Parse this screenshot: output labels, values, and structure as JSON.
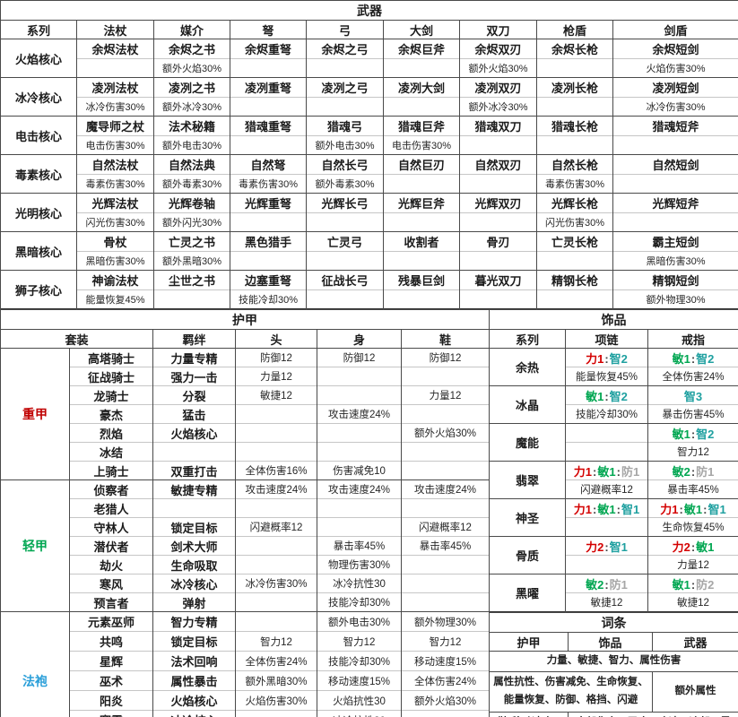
{
  "weapons": {
    "title": "武器",
    "columns": [
      "系列",
      "法杖",
      "媒介",
      "弩",
      "弓",
      "大剑",
      "双刀",
      "枪盾",
      "剑盾"
    ],
    "rows": [
      {
        "series": "火焰核心",
        "names": [
          "余烬法杖",
          "余烬之书",
          "余烬重弩",
          "余烬之弓",
          "余烬巨斧",
          "余烬双刃",
          "余烬长枪",
          "余烬短剑"
        ],
        "bonuses": [
          "",
          "额外火焰30%",
          "",
          "",
          "",
          "额外火焰30%",
          "",
          "火焰伤害30%"
        ]
      },
      {
        "series": "冰冷核心",
        "names": [
          "凌冽法杖",
          "凌冽之书",
          "凌冽重弩",
          "凌冽之弓",
          "凌冽大剑",
          "凌冽双刃",
          "凌冽长枪",
          "凌冽短剑"
        ],
        "bonuses": [
          "冰冷伤害30%",
          "额外冰冷30%",
          "",
          "",
          "",
          "额外冰冷30%",
          "",
          "冰冷伤害30%"
        ]
      },
      {
        "series": "电击核心",
        "names": [
          "魔导师之杖",
          "法术秘籍",
          "猎魂重弩",
          "猎魂弓",
          "猎魂巨斧",
          "猎魂双刀",
          "猎魂长枪",
          "猎魂短斧"
        ],
        "bonuses": [
          "电击伤害30%",
          "额外电击30%",
          "",
          "额外电击30%",
          "电击伤害30%",
          "",
          "",
          ""
        ]
      },
      {
        "series": "毒素核心",
        "names": [
          "自然法杖",
          "自然法典",
          "自然弩",
          "自然长弓",
          "自然巨刃",
          "自然双刃",
          "自然长枪",
          "自然短剑"
        ],
        "bonuses": [
          "毒素伤害30%",
          "额外毒素30%",
          "毒素伤害30%",
          "额外毒素30%",
          "",
          "",
          "毒素伤害30%",
          ""
        ]
      },
      {
        "series": "光明核心",
        "names": [
          "光辉法杖",
          "光辉卷轴",
          "光辉重弩",
          "光辉长弓",
          "光辉巨斧",
          "光辉双刃",
          "光辉长枪",
          "光辉短斧"
        ],
        "bonuses": [
          "闪光伤害30%",
          "额外闪光30%",
          "",
          "",
          "",
          "",
          "闪光伤害30%",
          ""
        ]
      },
      {
        "series": "黑暗核心",
        "names": [
          "骨杖",
          "亡灵之书",
          "黑色猎手",
          "亡灵弓",
          "收割者",
          "骨刃",
          "亡灵长枪",
          "霸主短剑"
        ],
        "bonuses": [
          "黑暗伤害30%",
          "额外黑暗30%",
          "",
          "",
          "",
          "",
          "",
          "黑暗伤害30%"
        ]
      },
      {
        "series": "狮子核心",
        "names": [
          "神谕法杖",
          "尘世之书",
          "边塞重弩",
          "征战长弓",
          "残暴巨剑",
          "暮光双刀",
          "精钢长枪",
          "精钢短剑"
        ],
        "bonuses": [
          "能量恢复45%",
          "",
          "技能冷却30%",
          "",
          "",
          "",
          "",
          "额外物理30%"
        ]
      }
    ]
  },
  "armor": {
    "title": "护甲",
    "columns": [
      "套装",
      "羁绊",
      "头",
      "身",
      "鞋"
    ],
    "groups": [
      {
        "label": "重甲",
        "color": "#c00000",
        "sets": [
          {
            "name": "高塔骑士",
            "bond": "力量专精",
            "head": "防御12",
            "body": "防御12",
            "shoes": "防御12"
          },
          {
            "name": "征战骑士",
            "bond": "强力一击",
            "head": "力量12",
            "body": "",
            "shoes": ""
          },
          {
            "name": "龙骑士",
            "bond": "分裂",
            "head": "敏捷12",
            "body": "",
            "shoes": "力量12"
          },
          {
            "name": "豪杰",
            "bond": "猛击",
            "head": "",
            "body": "攻击速度24%",
            "shoes": ""
          },
          {
            "name": "烈焰",
            "bond": "火焰核心",
            "head": "",
            "body": "",
            "shoes": "额外火焰30%"
          },
          {
            "name": "冰结",
            "bond": "",
            "head": "",
            "body": "",
            "shoes": ""
          },
          {
            "name": "上骑士",
            "bond": "双重打击",
            "head": "全体伤害16%",
            "body": "伤害减免10",
            "shoes": ""
          }
        ]
      },
      {
        "label": "轻甲",
        "color": "#00a651",
        "sets": [
          {
            "name": "侦察者",
            "bond": "敏捷专精",
            "head": "攻击速度24%",
            "body": "攻击速度24%",
            "shoes": "攻击速度24%"
          },
          {
            "name": "老猎人",
            "bond": "",
            "head": "",
            "body": "",
            "shoes": ""
          },
          {
            "name": "守林人",
            "bond": "锁定目标",
            "head": "闪避概率12",
            "body": "",
            "shoes": "闪避概率12"
          },
          {
            "name": "潜伏者",
            "bond": "剑术大师",
            "head": "",
            "body": "暴击率45%",
            "shoes": "暴击率45%"
          },
          {
            "name": "劫火",
            "bond": "生命吸取",
            "head": "",
            "body": "物理伤害30%",
            "shoes": ""
          },
          {
            "name": "寒风",
            "bond": "冰冷核心",
            "head": "冰冷伤害30%",
            "body": "冰冷抗性30",
            "shoes": ""
          },
          {
            "name": "预言者",
            "bond": "弹射",
            "head": "",
            "body": "技能冷却30%",
            "shoes": ""
          }
        ]
      },
      {
        "label": "法袍",
        "color": "#2b9fd9",
        "sets": [
          {
            "name": "元素巫师",
            "bond": "智力专精",
            "head": "",
            "body": "额外电击30%",
            "shoes": "额外物理30%"
          },
          {
            "name": "共鸣",
            "bond": "锁定目标",
            "head": "智力12",
            "body": "智力12",
            "shoes": "智力12"
          },
          {
            "name": "星辉",
            "bond": "法术回响",
            "head": "全体伤害24%",
            "body": "技能冷却30%",
            "shoes": "移动速度15%"
          },
          {
            "name": "巫术",
            "bond": "属性暴击",
            "head": "额外黑暗30%",
            "body": "移动速度15%",
            "shoes": "全体伤害24%"
          },
          {
            "name": "阳炎",
            "bond": "火焰核心",
            "head": "火焰伤害30%",
            "body": "火焰抗性30",
            "shoes": "额外火焰30%"
          },
          {
            "name": "寒霜",
            "bond": "冰冷核心",
            "head": "",
            "body": "冰冷抗性30",
            "shoes": ""
          },
          {
            "name": "主教",
            "bond": "弹射/专注/增幅",
            "head": "能量恢复45%",
            "body": "全体伤害24%",
            "shoes": "技能冷却30%"
          }
        ]
      }
    ]
  },
  "accessories": {
    "title": "饰品",
    "columns": [
      "系列",
      "项链",
      "戒指"
    ],
    "sep": ":",
    "stat_colors": {
      "str": "#d40000",
      "agi": "#00a651",
      "int": "#1fa0a0",
      "def": "#a6a6a6"
    },
    "rows": [
      {
        "series": "余热",
        "necklace": {
          "stats": [
            {
              "text": "力1",
              "c": "str"
            },
            {
              "text": "智2",
              "c": "int"
            }
          ],
          "bonus": "能量恢复45%"
        },
        "ring": {
          "stats": [
            {
              "text": "敏1",
              "c": "agi"
            },
            {
              "text": "智2",
              "c": "int"
            }
          ],
          "bonus": "全体伤害24%"
        }
      },
      {
        "series": "冰晶",
        "necklace": {
          "stats": [
            {
              "text": "敏1",
              "c": "agi"
            },
            {
              "text": "智2",
              "c": "int"
            }
          ],
          "bonus": "技能冷却30%"
        },
        "ring": {
          "stats": [
            {
              "text": "智3",
              "c": "int"
            }
          ],
          "bonus": "暴击伤害45%"
        }
      },
      {
        "series": "魔能",
        "necklace": {
          "stats": [],
          "bonus": ""
        },
        "ring": {
          "stats": [
            {
              "text": "敏1",
              "c": "agi"
            },
            {
              "text": "智2",
              "c": "int"
            }
          ],
          "bonus": "智力12"
        }
      },
      {
        "series": "翡翠",
        "necklace": {
          "stats": [
            {
              "text": "力1",
              "c": "str"
            },
            {
              "text": "敏1",
              "c": "agi"
            },
            {
              "text": "防1",
              "c": "def"
            }
          ],
          "bonus": "闪避概率12"
        },
        "ring": {
          "stats": [
            {
              "text": "敏2",
              "c": "agi"
            },
            {
              "text": "防1",
              "c": "def"
            }
          ],
          "bonus": "暴击率45%"
        }
      },
      {
        "series": "神圣",
        "necklace": {
          "stats": [
            {
              "text": "力1",
              "c": "str"
            },
            {
              "text": "敏1",
              "c": "agi"
            },
            {
              "text": "智1",
              "c": "int"
            }
          ],
          "bonus": ""
        },
        "ring": {
          "stats": [
            {
              "text": "力1",
              "c": "str"
            },
            {
              "text": "敏1",
              "c": "agi"
            },
            {
              "text": "智1",
              "c": "int"
            }
          ],
          "bonus": "生命恢复45%"
        }
      },
      {
        "series": "骨质",
        "necklace": {
          "stats": [
            {
              "text": "力2",
              "c": "str"
            },
            {
              "text": "智1",
              "c": "int"
            }
          ],
          "bonus": ""
        },
        "ring": {
          "stats": [
            {
              "text": "力2",
              "c": "str"
            },
            {
              "text": "敏1",
              "c": "agi"
            }
          ],
          "bonus": "力量12"
        }
      },
      {
        "series": "黑曜",
        "necklace": {
          "stats": [
            {
              "text": "敏2",
              "c": "agi"
            },
            {
              "text": "防1",
              "c": "def"
            }
          ],
          "bonus": "敏捷12"
        },
        "ring": {
          "stats": [
            {
              "text": "敏1",
              "c": "agi"
            },
            {
              "text": "防2",
              "c": "def"
            }
          ],
          "bonus": "敏捷12"
        }
      }
    ]
  },
  "affixes": {
    "title": "词条",
    "columns": [
      "护甲",
      "饰品",
      "武器"
    ],
    "rows": [
      {
        "cells": [
          {
            "text": "力量、敏捷、智力、属性伤害",
            "span": 3
          }
        ]
      },
      {
        "cells": [
          {
            "text": "属性抗性、伤害减免、生命恢复、能量恢复、防御、格挡、闪避",
            "span": 2
          },
          {
            "text": "额外属性",
            "span": 1
          }
        ]
      },
      {
        "cells": [
          {
            "text": "(鞋)移动速度、击退抗性",
            "span": 1
          },
          {
            "text": "全部伤害、召唤、攻速、冷却、暴率、暴伤",
            "span": 2
          }
        ]
      }
    ]
  }
}
